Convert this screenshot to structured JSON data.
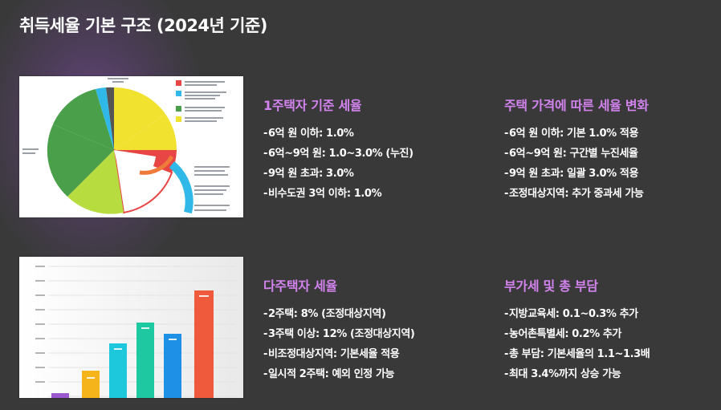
{
  "page": {
    "title": "취득세율 기본 구조 (2024년 기준)"
  },
  "sections": [
    {
      "title": "1주택자 기준 세율",
      "items": [
        "6억 원 이하: 1.0%",
        "6억~9억 원: 1.0~3.0% (누진)",
        "9억 원 초과: 3.0%",
        "비수도권 3억 이하: 1.0%"
      ]
    },
    {
      "title": "주택 가격에 따른 세율 변화",
      "items": [
        "6억 원 이하: 기본 1.0% 적용",
        "6억~9억 원: 구간별 누진세율",
        "9억 원 초과: 일괄 3.0% 적용",
        "조정대상지역: 추가 중과세 가능"
      ]
    },
    {
      "title": "다주택자 세율",
      "items": [
        "2주택: 8% (조정대상지역)",
        "3주택 이상: 12% (조정대상지역)",
        "비조정대상지역: 기본세율 적용",
        "일시적 2주택: 예외 인정 가능"
      ]
    },
    {
      "title": "부가세 및 총 부담",
      "items": [
        "지방교육세: 0.1~0.3% 추가",
        "농어촌특별세: 0.2% 추가",
        "총 부담: 기본세율의 1.1~1.3배",
        "최대 3.4%까지 상승 가능"
      ]
    }
  ],
  "colors": {
    "accent": "#d383ee",
    "background": "#393939"
  },
  "images": {
    "pie_thumbnail": "pie-chart-photo",
    "bar_thumbnail": "bar-chart-photo"
  }
}
